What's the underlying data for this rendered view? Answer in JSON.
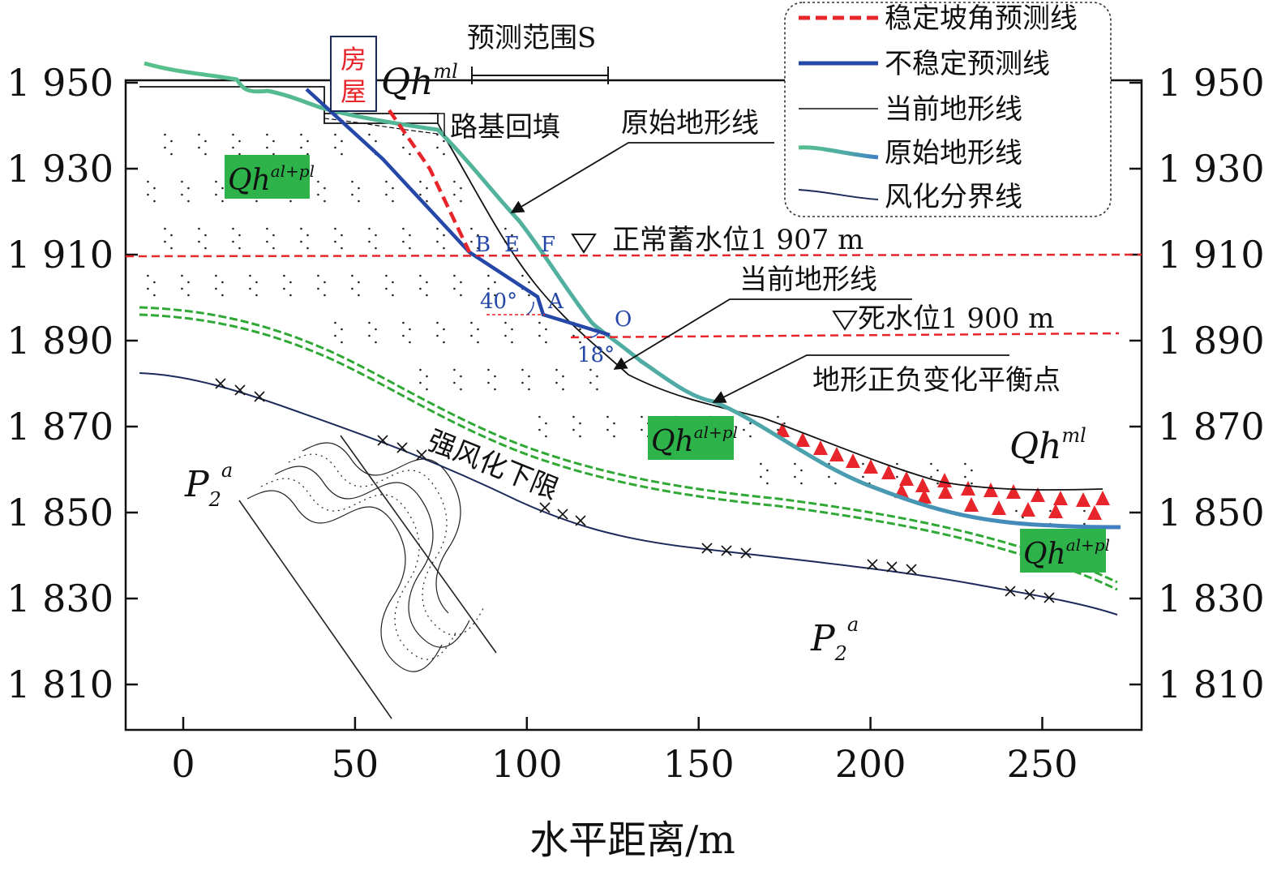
{
  "axis": {
    "xlabel": "水平距离/m",
    "x_ticks": [
      "0",
      "50",
      "100",
      "150",
      "200",
      "250"
    ],
    "y_ticks": [
      "1 950",
      "1 930",
      "1 910",
      "1 890",
      "1 870",
      "1 850",
      "1 830",
      "1 810"
    ],
    "y_ticks_right": [
      "1 950",
      "1 930",
      "1 910",
      "1 890",
      "1 870",
      "1 850",
      "1 830",
      "1 810"
    ],
    "xlim": [
      -17,
      278
    ],
    "ylim": [
      1800,
      1952
    ]
  },
  "legend": {
    "items": [
      {
        "label": "稳定坡角预测线",
        "color": "#e8252a",
        "style": "dashed"
      },
      {
        "label": "不稳定预测线",
        "color": "#2548a8",
        "style": "solid-thick"
      },
      {
        "label": "当前地形线",
        "color": "#111111",
        "style": "solid-thin"
      },
      {
        "label": "原始地形线",
        "color": "#4fb89a",
        "style": "gradient-thick"
      },
      {
        "label": "风化分界线",
        "color": "#1c2a5a",
        "style": "solid"
      }
    ]
  },
  "labels": {
    "forecast_range": "预测范围S",
    "house": "房屋",
    "qh_ml_top": "Qh",
    "qh_ml_top_sup": "ml",
    "subgrade": "路基回填",
    "original_terrain": "原始地形线",
    "current_terrain": "当前地形线",
    "normal_level": "正常蓄水位1 907 m",
    "dead_level": "死水位1 900 m",
    "balance_point": "地形正负变化平衡点",
    "qh_alpl_main": "Qh",
    "qh_alpl_sup": "al+pl",
    "weathering_lower": "强风化下限",
    "p2a": "P",
    "p2a_sub": "2",
    "p2a_sup": "a",
    "qh_ml_right": "Qh",
    "qh_ml_right_sup": "ml",
    "point_b": "B",
    "point_e": "E",
    "point_f": "F",
    "point_a": "A",
    "point_o": "O",
    "angle_40": "40°",
    "angle_18": "18°"
  },
  "colors": {
    "red": "#e8252a",
    "blue": "#2548a8",
    "green_box": "#2db34a",
    "green_line": "#4fb89a",
    "navy": "#1c2a5a",
    "weather_green": "#2fa836"
  },
  "water_levels": [
    1907,
    1900
  ]
}
